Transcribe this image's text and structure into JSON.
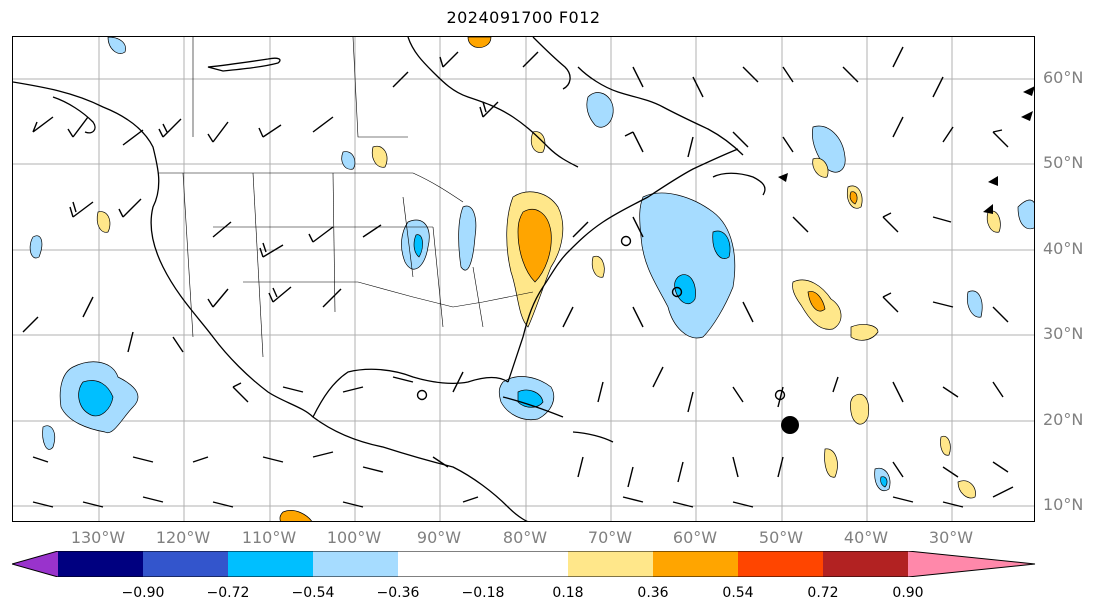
{
  "title": "2024091700 F012",
  "lat_labels": [
    "60°N",
    "50°N",
    "40°N",
    "30°N",
    "20°N",
    "10°N"
  ],
  "lon_labels": [
    "130°W",
    "120°W",
    "110°W",
    "100°W",
    "90°W",
    "80°W",
    "70°W",
    "60°W",
    "50°W",
    "40°W",
    "30°W"
  ],
  "colorbar": {
    "tick_labels": [
      "−0.90",
      "−0.72",
      "−0.54",
      "−0.36",
      "−0.18",
      "0.18",
      "0.36",
      "0.54",
      "0.72",
      "0.90"
    ],
    "colors": [
      "#9933cc",
      "#000080",
      "#3355cc",
      "#00bfff",
      "#a6dcff",
      "#ffffff",
      "#ffe78a",
      "#ffa500",
      "#ff4500",
      "#b22222",
      "#ff88aa"
    ]
  }
}
